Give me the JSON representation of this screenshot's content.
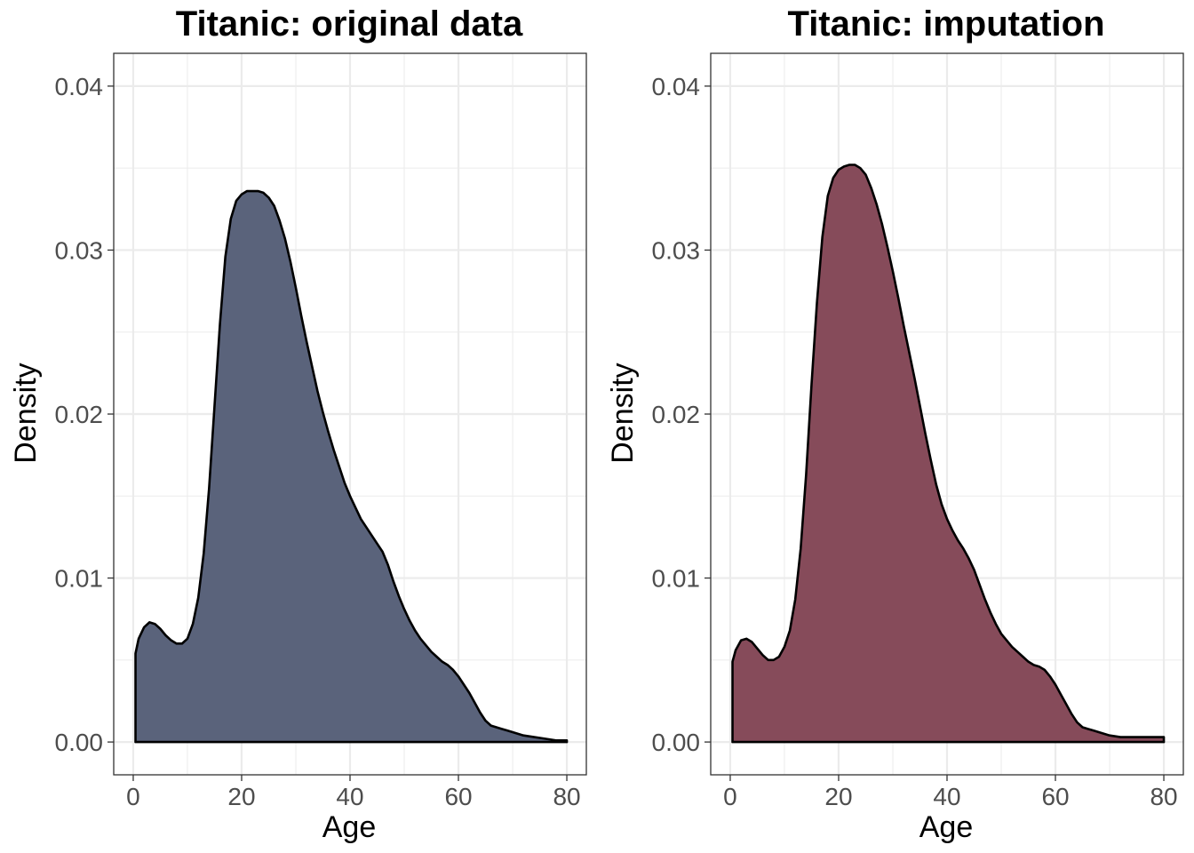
{
  "chart_data": [
    {
      "type": "area",
      "title": "Titanic: original data",
      "xlabel": "Age",
      "ylabel": "Density",
      "xlim": [
        -3.6,
        83.6
      ],
      "ylim": [
        -0.002,
        0.042
      ],
      "x_ticks": [
        0,
        20,
        40,
        60,
        80
      ],
      "x_tick_labels": [
        "0",
        "20",
        "40",
        "60",
        "80"
      ],
      "y_ticks": [
        0.0,
        0.01,
        0.02,
        0.03,
        0.04
      ],
      "y_tick_labels": [
        "0.00",
        "0.01",
        "0.02",
        "0.03",
        "0.04"
      ],
      "grid": true,
      "fill_color": "#5a637b",
      "line_color": "#000000",
      "x": [
        0.42,
        1,
        2,
        3,
        4,
        5,
        6,
        7,
        8,
        9,
        10,
        11,
        12,
        13,
        14,
        15,
        16,
        17,
        18,
        19,
        20,
        21,
        22,
        23,
        24,
        25,
        26,
        27,
        28,
        29,
        30,
        31,
        32,
        33,
        34,
        35,
        36,
        37,
        38,
        39,
        40,
        41,
        42,
        43,
        44,
        45,
        46,
        47,
        48,
        49,
        50,
        51,
        52,
        53,
        54,
        55,
        56,
        57,
        58,
        59,
        60,
        61,
        62,
        63,
        64,
        65,
        66,
        67,
        68,
        69,
        70,
        72,
        74,
        76,
        78,
        80
      ],
      "y": [
        0.0054,
        0.0063,
        0.007,
        0.0073,
        0.0072,
        0.0069,
        0.0065,
        0.0062,
        0.006,
        0.006,
        0.0063,
        0.0072,
        0.0088,
        0.0115,
        0.0155,
        0.0205,
        0.0255,
        0.0296,
        0.0319,
        0.033,
        0.0334,
        0.0336,
        0.0336,
        0.0336,
        0.0335,
        0.0332,
        0.0327,
        0.0318,
        0.0307,
        0.0293,
        0.0277,
        0.026,
        0.0244,
        0.0229,
        0.0214,
        0.0201,
        0.0189,
        0.0178,
        0.0168,
        0.0158,
        0.015,
        0.0143,
        0.0136,
        0.0131,
        0.0126,
        0.0121,
        0.0116,
        0.0108,
        0.0098,
        0.0089,
        0.0081,
        0.0074,
        0.0068,
        0.0063,
        0.0059,
        0.0055,
        0.0052,
        0.0049,
        0.0047,
        0.0044,
        0.004,
        0.0035,
        0.003,
        0.0024,
        0.0018,
        0.0013,
        0.001,
        0.0009,
        0.0008,
        0.0007,
        0.0006,
        0.0004,
        0.0003,
        0.0002,
        0.0001,
        0.0001
      ]
    },
    {
      "type": "area",
      "title": "Titanic: imputation",
      "xlabel": "Age",
      "ylabel": "Density",
      "xlim": [
        -3.6,
        83.6
      ],
      "ylim": [
        -0.002,
        0.042
      ],
      "x_ticks": [
        0,
        20,
        40,
        60,
        80
      ],
      "x_tick_labels": [
        "0",
        "20",
        "40",
        "60",
        "80"
      ],
      "y_ticks": [
        0.0,
        0.01,
        0.02,
        0.03,
        0.04
      ],
      "y_tick_labels": [
        "0.00",
        "0.01",
        "0.02",
        "0.03",
        "0.04"
      ],
      "grid": true,
      "fill_color": "#864b5a",
      "line_color": "#000000",
      "x": [
        0.42,
        1,
        2,
        3,
        4,
        5,
        6,
        7,
        8,
        9,
        10,
        11,
        12,
        13,
        14,
        15,
        16,
        17,
        18,
        19,
        20,
        21,
        22,
        23,
        24,
        25,
        26,
        27,
        28,
        29,
        30,
        31,
        32,
        33,
        34,
        35,
        36,
        37,
        38,
        39,
        40,
        41,
        42,
        43,
        44,
        45,
        46,
        47,
        48,
        49,
        50,
        51,
        52,
        53,
        54,
        55,
        56,
        57,
        58,
        59,
        60,
        61,
        62,
        63,
        64,
        65,
        66,
        67,
        68,
        69,
        70,
        72,
        74,
        76,
        78,
        80
      ],
      "y": [
        0.0049,
        0.0056,
        0.0062,
        0.0063,
        0.0061,
        0.0057,
        0.0053,
        0.005,
        0.005,
        0.0052,
        0.0058,
        0.0068,
        0.0087,
        0.0118,
        0.0163,
        0.0218,
        0.0268,
        0.0308,
        0.0333,
        0.0344,
        0.0349,
        0.0351,
        0.0352,
        0.0352,
        0.035,
        0.0346,
        0.0338,
        0.0328,
        0.0316,
        0.0302,
        0.0287,
        0.0271,
        0.0254,
        0.0238,
        0.0222,
        0.0205,
        0.0188,
        0.0172,
        0.0157,
        0.0145,
        0.0136,
        0.0129,
        0.0123,
        0.0118,
        0.0112,
        0.0105,
        0.0096,
        0.0087,
        0.0079,
        0.0072,
        0.0066,
        0.0062,
        0.0058,
        0.0055,
        0.0052,
        0.0049,
        0.0047,
        0.0046,
        0.0044,
        0.004,
        0.0035,
        0.0029,
        0.0023,
        0.0017,
        0.0012,
        0.0009,
        0.0008,
        0.0007,
        0.0006,
        0.0005,
        0.0004,
        0.0003,
        0.0003,
        0.0003,
        0.0003,
        0.0003
      ]
    }
  ]
}
